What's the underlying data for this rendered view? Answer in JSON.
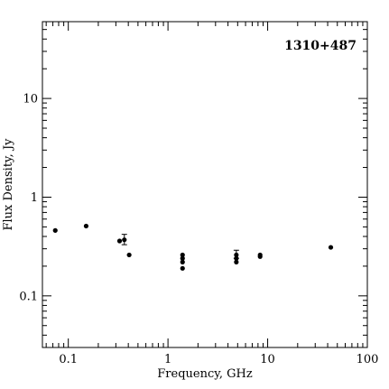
{
  "chart_data": {
    "type": "scatter",
    "title": "",
    "annotation": "1310+487",
    "xlabel": "Frequency, GHz",
    "ylabel": "Flux Density, Jy",
    "xscale": "log",
    "yscale": "log",
    "xlim": [
      0.055,
      100
    ],
    "ylim": [
      0.03,
      60
    ],
    "grid": false,
    "marker_color": "#000000",
    "x_ticks": [
      {
        "value": 0.1,
        "label": "0.1"
      },
      {
        "value": 1,
        "label": "1"
      },
      {
        "value": 10,
        "label": "10"
      },
      {
        "value": 100,
        "label": "100"
      }
    ],
    "y_ticks": [
      {
        "value": 0.1,
        "label": "0.1"
      },
      {
        "value": 1,
        "label": "1"
      },
      {
        "value": 10,
        "label": "10"
      }
    ],
    "points": [
      {
        "x": 0.074,
        "y": 0.46
      },
      {
        "x": 0.151,
        "y": 0.51
      },
      {
        "x": 0.327,
        "y": 0.36
      },
      {
        "x": 0.365,
        "y": 0.37,
        "err_low": 0.33,
        "err_high": 0.42
      },
      {
        "x": 0.408,
        "y": 0.26
      },
      {
        "x": 1.4,
        "y": 0.26
      },
      {
        "x": 1.4,
        "y": 0.24
      },
      {
        "x": 1.4,
        "y": 0.22
      },
      {
        "x": 1.4,
        "y": 0.19
      },
      {
        "x": 4.85,
        "y": 0.26,
        "err_low": 0.24,
        "err_high": 0.29
      },
      {
        "x": 4.85,
        "y": 0.24
      },
      {
        "x": 4.85,
        "y": 0.22
      },
      {
        "x": 8.4,
        "y": 0.26
      },
      {
        "x": 8.4,
        "y": 0.25
      },
      {
        "x": 43,
        "y": 0.31
      }
    ]
  }
}
